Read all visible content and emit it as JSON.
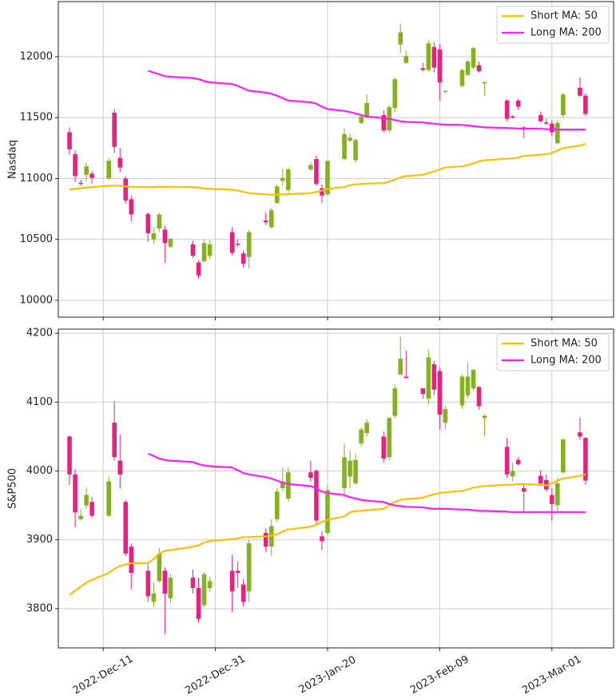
{
  "chart_data": [
    {
      "type": "candlestick",
      "ylabel": "Nasdaq",
      "x": [
        "2022-12-05",
        "2022-12-06",
        "2022-12-07",
        "2022-12-08",
        "2022-12-09",
        "2022-12-12",
        "2022-12-13",
        "2022-12-14",
        "2022-12-15",
        "2022-12-16",
        "2022-12-19",
        "2022-12-20",
        "2022-12-21",
        "2022-12-22",
        "2022-12-23",
        "2022-12-27",
        "2022-12-28",
        "2022-12-29",
        "2022-12-30",
        "2023-01-03",
        "2023-01-04",
        "2023-01-05",
        "2023-01-06",
        "2023-01-09",
        "2023-01-10",
        "2023-01-11",
        "2023-01-12",
        "2023-01-13",
        "2023-01-17",
        "2023-01-18",
        "2023-01-19",
        "2023-01-20",
        "2023-01-23",
        "2023-01-24",
        "2023-01-25",
        "2023-01-26",
        "2023-01-27",
        "2023-01-30",
        "2023-01-31",
        "2023-02-01",
        "2023-02-02",
        "2023-02-03",
        "2023-02-06",
        "2023-02-07",
        "2023-02-08",
        "2023-02-09",
        "2023-02-10",
        "2023-02-13",
        "2023-02-14",
        "2023-02-15",
        "2023-02-16",
        "2023-02-17",
        "2023-02-21",
        "2023-02-22",
        "2023-02-23",
        "2023-02-24",
        "2023-02-27",
        "2023-02-28",
        "2023-03-01",
        "2023-03-02",
        "2023-03-03",
        "2023-03-06",
        "2023-03-07"
      ],
      "open": [
        11380,
        11200,
        10965,
        11030,
        11040,
        11000,
        11540,
        11170,
        11000,
        10830,
        10710,
        10500,
        10590,
        10580,
        10440,
        10460,
        10310,
        10320,
        10365,
        10560,
        10465,
        10385,
        10355,
        10655,
        10600,
        10800,
        10980,
        10905,
        11075,
        11160,
        10920,
        10870,
        11160,
        11310,
        11150,
        11455,
        11500,
        11520,
        11395,
        11580,
        12100,
        11950,
        11905,
        11890,
        12080,
        12060,
        11715,
        11760,
        11850,
        11910,
        11930,
        11785,
        11640,
        11510,
        11640,
        11420,
        11520,
        11460,
        11450,
        11290,
        11520,
        11745,
        11680
      ],
      "high": [
        11420,
        11230,
        10990,
        11130,
        11060,
        11170,
        11570,
        11250,
        11020,
        10860,
        10720,
        10600,
        10720,
        10610,
        10510,
        10490,
        10330,
        10500,
        10490,
        10600,
        10500,
        10410,
        10580,
        10720,
        10760,
        10950,
        11080,
        11090,
        11130,
        11190,
        10950,
        11150,
        11410,
        11370,
        11330,
        11520,
        11690,
        11560,
        11600,
        11830,
        12270,
        12050,
        11950,
        12130,
        12120,
        12100,
        11720,
        11900,
        11970,
        12080,
        11960,
        11800,
        11650,
        11520,
        11650,
        11430,
        11550,
        11490,
        11480,
        11480,
        11700,
        11830,
        11700
      ],
      "low": [
        11190,
        10970,
        10940,
        10980,
        10960,
        10990,
        11210,
        11050,
        10790,
        10650,
        10480,
        10460,
        10560,
        10310,
        10430,
        10350,
        10180,
        10310,
        10340,
        10370,
        10440,
        10270,
        10260,
        10620,
        10590,
        10790,
        10940,
        10880,
        11060,
        10940,
        10800,
        10860,
        11150,
        11300,
        11130,
        11450,
        11490,
        11380,
        11380,
        11550,
        12030,
        11940,
        11880,
        11880,
        11870,
        11640,
        11700,
        11750,
        11840,
        11900,
        11870,
        11680,
        11470,
        11490,
        11560,
        11330,
        11460,
        11440,
        11350,
        11280,
        11500,
        11670,
        11510
      ],
      "close": [
        11240,
        11020,
        10955,
        11100,
        11005,
        11145,
        11260,
        11090,
        10820,
        10705,
        10550,
        10550,
        10705,
        10470,
        10505,
        10365,
        10205,
        10470,
        10460,
        10390,
        10455,
        10300,
        10560,
        10640,
        10740,
        10935,
        11005,
        11075,
        11110,
        10955,
        10860,
        11145,
        11365,
        11335,
        11315,
        11510,
        11620,
        11395,
        11585,
        11815,
        12200,
        12005,
        11890,
        12110,
        11910,
        11790,
        11720,
        11890,
        11960,
        12070,
        11880,
        11790,
        11490,
        11500,
        11590,
        11400,
        11470,
        11450,
        11380,
        11455,
        11690,
        11680,
        11530
      ],
      "up_color": "#84b21f",
      "down_color": "#e8217f",
      "series": [
        {
          "name": "Short MA: 50",
          "color": "#ffbf00",
          "values": [
            10910,
            10915,
            10920,
            10925,
            10930,
            10940,
            10942,
            10940,
            10935,
            10932,
            10930,
            10930,
            10933,
            10932,
            10932,
            10930,
            10925,
            10918,
            10915,
            10908,
            10900,
            10890,
            10880,
            10870,
            10868,
            10868,
            10870,
            10872,
            10880,
            10890,
            10900,
            10915,
            10930,
            10945,
            10952,
            10955,
            10958,
            10962,
            10975,
            10990,
            11010,
            11020,
            11030,
            11045,
            11060,
            11075,
            11090,
            11100,
            11110,
            11125,
            11140,
            11150,
            11162,
            11165,
            11172,
            11185,
            11195,
            11200,
            11210,
            11230,
            11250,
            11270,
            11285
          ]
        },
        {
          "name": "Long MA: 200",
          "color": "#ff1aff",
          "values": [
            null,
            null,
            null,
            null,
            null,
            null,
            null,
            null,
            null,
            null,
            11885,
            11870,
            11855,
            11840,
            11835,
            11825,
            11815,
            11800,
            11790,
            11775,
            11760,
            11740,
            11720,
            11705,
            11695,
            11680,
            11660,
            11640,
            11625,
            11615,
            11590,
            11570,
            11555,
            11545,
            11535,
            11520,
            11510,
            11495,
            11490,
            11480,
            11470,
            11465,
            11460,
            11455,
            11450,
            11445,
            11443,
            11440,
            11435,
            11430,
            11425,
            11420,
            11415,
            11413,
            11410,
            11410,
            11408,
            11405,
            11405,
            11403,
            11402,
            11402,
            11402
          ]
        }
      ],
      "xlim": [
        "2022-12-03",
        "2023-03-12"
      ],
      "xticks": [
        "2022-12-11",
        "2022-12-31",
        "2023-01-20",
        "2023-02-09",
        "2023-03-01"
      ],
      "ylim": [
        9862,
        12452
      ],
      "yticks": [
        10000,
        10500,
        11000,
        11500,
        12000
      ],
      "grid": true,
      "legend": "upper right"
    },
    {
      "type": "candlestick",
      "ylabel": "S&P500",
      "x": [
        "2022-12-05",
        "2022-12-06",
        "2022-12-07",
        "2022-12-08",
        "2022-12-09",
        "2022-12-12",
        "2022-12-13",
        "2022-12-14",
        "2022-12-15",
        "2022-12-16",
        "2022-12-19",
        "2022-12-20",
        "2022-12-21",
        "2022-12-22",
        "2022-12-23",
        "2022-12-27",
        "2022-12-28",
        "2022-12-29",
        "2022-12-30",
        "2023-01-03",
        "2023-01-04",
        "2023-01-05",
        "2023-01-06",
        "2023-01-09",
        "2023-01-10",
        "2023-01-11",
        "2023-01-12",
        "2023-01-13",
        "2023-01-17",
        "2023-01-18",
        "2023-01-19",
        "2023-01-20",
        "2023-01-23",
        "2023-01-24",
        "2023-01-25",
        "2023-01-26",
        "2023-01-27",
        "2023-01-30",
        "2023-01-31",
        "2023-02-01",
        "2023-02-02",
        "2023-02-03",
        "2023-02-06",
        "2023-02-07",
        "2023-02-08",
        "2023-02-09",
        "2023-02-10",
        "2023-02-13",
        "2023-02-14",
        "2023-02-15",
        "2023-02-16",
        "2023-02-17",
        "2023-02-21",
        "2023-02-22",
        "2023-02-23",
        "2023-02-24",
        "2023-02-27",
        "2023-02-28",
        "2023-03-01",
        "2023-03-02",
        "2023-03-03",
        "2023-03-06",
        "2023-03-07"
      ],
      "open": [
        4050,
        3995,
        3930,
        3950,
        3955,
        3935,
        4070,
        4015,
        3955,
        3890,
        3855,
        3810,
        3840,
        3855,
        3815,
        3845,
        3830,
        3805,
        3830,
        3855,
        3855,
        3835,
        3825,
        3910,
        3890,
        3930,
        3975,
        3960,
        3998,
        4000,
        3905,
        3910,
        3975,
        3992,
        3982,
        4040,
        4055,
        4050,
        4020,
        4080,
        4140,
        4137,
        4120,
        4105,
        4155,
        4145,
        4070,
        4095,
        4110,
        4120,
        4122,
        4077,
        4035,
        3992,
        4016,
        3975,
        3993,
        3987,
        3965,
        3950,
        3998,
        4056,
        4048
      ],
      "high": [
        4052,
        4002,
        3945,
        3976,
        3962,
        3992,
        4101,
        4053,
        3958,
        3895,
        3864,
        3838,
        3888,
        3860,
        3850,
        3857,
        3845,
        3853,
        3846,
        3878,
        3868,
        3843,
        3900,
        3916,
        3930,
        3975,
        4005,
        4005,
        4015,
        4003,
        3912,
        3980,
        4040,
        4030,
        4025,
        4063,
        4075,
        4057,
        4078,
        4125,
        4195,
        4175,
        4120,
        4176,
        4160,
        4150,
        4095,
        4140,
        4157,
        4147,
        4123,
        4082,
        4048,
        4012,
        4020,
        3982,
        4001,
        3995,
        3975,
        3990,
        4045,
        4078,
        4048
      ],
      "low": [
        3980,
        3918,
        3928,
        3945,
        3932,
        3933,
        4015,
        3975,
        3876,
        3828,
        3810,
        3802,
        3838,
        3763,
        3808,
        3822,
        3780,
        3802,
        3825,
        3795,
        3830,
        3803,
        3810,
        3882,
        3877,
        3925,
        3970,
        3955,
        3984,
        3922,
        3885,
        3905,
        3962,
        3975,
        3980,
        4035,
        4050,
        4012,
        4015,
        4077,
        4140,
        4135,
        4105,
        4097,
        4110,
        4060,
        4060,
        4090,
        4105,
        4117,
        4089,
        4050,
        3990,
        3985,
        4008,
        3941,
        3978,
        3970,
        3928,
        3940,
        3995,
        4045,
        3980
      ],
      "close": [
        3995,
        3940,
        3935,
        3965,
        3935,
        3985,
        4020,
        3995,
        3880,
        3852,
        3818,
        3822,
        3880,
        3822,
        3845,
        3830,
        3785,
        3850,
        3840,
        3825,
        3852,
        3810,
        3895,
        3890,
        3920,
        3970,
        3985,
        3998,
        3990,
        3928,
        3898,
        3972,
        4020,
        4015,
        4016,
        4060,
        4070,
        4018,
        4077,
        4120,
        4163,
        4135,
        4112,
        4165,
        4118,
        4082,
        4090,
        4137,
        4137,
        4147,
        4094,
        4080,
        3995,
        4000,
        4010,
        3970,
        3982,
        3973,
        3952,
        3982,
        4046,
        4050,
        3986
      ],
      "up_color": "#84b21f",
      "down_color": "#e8217f",
      "series": [
        {
          "name": "Short MA: 50",
          "color": "#ffbf00",
          "values": [
            3820,
            3826,
            3832,
            3838,
            3842,
            3852,
            3858,
            3862,
            3864,
            3866,
            3866,
            3872,
            3880,
            3884,
            3885,
            3890,
            3892,
            3896,
            3898,
            3901,
            3902,
            3904,
            3904,
            3905,
            3906,
            3908,
            3912,
            3915,
            3919,
            3922,
            3926,
            3929,
            3934,
            3940,
            3942,
            3942,
            3943,
            3945,
            3950,
            3955,
            3958,
            3959,
            3961,
            3964,
            3966,
            3968,
            3969,
            3971,
            3973,
            3976,
            3977,
            3978,
            3980,
            3980,
            3981,
            3981,
            3980,
            3979,
            3982,
            3986,
            3989,
            3993,
            3995
          ]
        },
        {
          "name": "Long MA: 200",
          "color": "#ff1aff",
          "values": [
            null,
            null,
            null,
            null,
            null,
            null,
            null,
            null,
            null,
            null,
            4025,
            4022,
            4018,
            4016,
            4015,
            4013,
            4010,
            4008,
            4007,
            4005,
            4001,
            3997,
            3995,
            3991,
            3989,
            3986,
            3983,
            3981,
            3978,
            3975,
            3970,
            3968,
            3965,
            3962,
            3960,
            3958,
            3957,
            3955,
            3952,
            3950,
            3949,
            3948,
            3947,
            3946,
            3945,
            3945,
            3945,
            3944,
            3944,
            3943,
            3942,
            3942,
            3941,
            3940,
            3940,
            3940,
            3940,
            3940,
            3940,
            3940,
            3940,
            3940,
            3940
          ]
        }
      ],
      "xlim": [
        "2022-12-03",
        "2023-03-12"
      ],
      "xticks": [
        {
          "value": "2022-12-11",
          "label": "2022-Dec-11"
        },
        {
          "value": "2022-12-31",
          "label": "2022-Dec-31"
        },
        {
          "value": "2023-01-20",
          "label": "2023-Jan-20"
        },
        {
          "value": "2023-02-09",
          "label": "2023-Feb-09"
        },
        {
          "value": "2023-03-01",
          "label": "2023-Mar-01"
        }
      ],
      "ylim": [
        3743,
        4206
      ],
      "yticks": [
        3800,
        3900,
        4000,
        4100,
        4200
      ],
      "grid": true,
      "legend": "upper right"
    }
  ]
}
